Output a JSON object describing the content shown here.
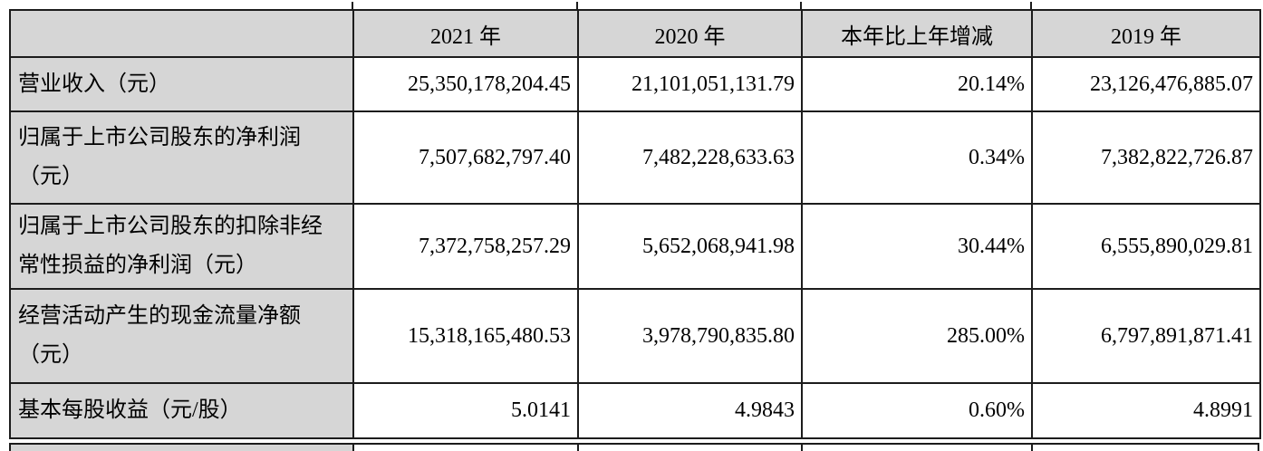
{
  "table": {
    "header": [
      "",
      "2021 年",
      "2020 年",
      "本年比上年增减",
      "2019 年"
    ],
    "rows": [
      {
        "label": "营业收入（元）",
        "values": [
          "25,350,178,204.45",
          "21,101,051,131.79",
          "20.14%",
          "23,126,476,885.07"
        ]
      },
      {
        "label": "归属于上市公司股东的净利润（元）",
        "values": [
          "7,507,682,797.40",
          "7,482,228,633.63",
          "0.34%",
          "7,382,822,726.87"
        ]
      },
      {
        "label": "归属于上市公司股东的扣除非经常性损益的净利润（元）",
        "values": [
          "7,372,758,257.29",
          "5,652,068,941.98",
          "30.44%",
          "6,555,890,029.81"
        ]
      },
      {
        "label": "经营活动产生的现金流量净额（元）",
        "values": [
          "15,318,165,480.53",
          "3,978,790,835.80",
          "285.00%",
          "6,797,891,871.41"
        ]
      },
      {
        "label": "基本每股收益（元/股）",
        "values": [
          "5.0141",
          "4.9843",
          "0.60%",
          "4.8991"
        ]
      }
    ]
  },
  "colors": {
    "cell_shade": "#d6d6d6",
    "border": "#1c1c1c",
    "background": "#ffffff"
  }
}
